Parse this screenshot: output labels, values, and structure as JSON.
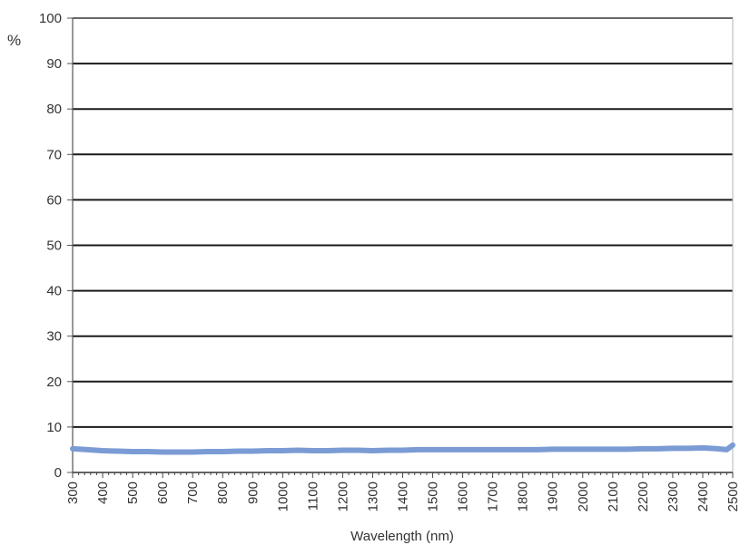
{
  "chart_data": {
    "type": "line",
    "title": "",
    "xlabel": "Wavelength (nm)",
    "ylabel": "%",
    "xlim": [
      300,
      2500
    ],
    "ylim": [
      0,
      100
    ],
    "x_ticks": [
      "300",
      "400",
      "500",
      "600",
      "700",
      "800",
      "900",
      "1000",
      "1100",
      "1200",
      "1300",
      "1400",
      "1500",
      "1600",
      "1700",
      "1800",
      "1900",
      "2000",
      "2100",
      "2200",
      "2300",
      "2400",
      "2500"
    ],
    "y_ticks": [
      "0",
      "10",
      "20",
      "30",
      "40",
      "50",
      "60",
      "70",
      "80",
      "90",
      "100"
    ],
    "grid": "horizontal",
    "legend": "none",
    "series": [
      {
        "color": "#7b9bd4",
        "x": [
          300,
          350,
          400,
          450,
          500,
          550,
          600,
          650,
          700,
          750,
          800,
          850,
          900,
          950,
          1000,
          1050,
          1100,
          1150,
          1200,
          1250,
          1300,
          1350,
          1400,
          1450,
          1500,
          1550,
          1600,
          1650,
          1700,
          1750,
          1800,
          1850,
          1900,
          1950,
          2000,
          2050,
          2100,
          2150,
          2200,
          2250,
          2300,
          2350,
          2400,
          2450,
          2480,
          2500
        ],
        "y": [
          5.2,
          5.0,
          4.8,
          4.7,
          4.6,
          4.6,
          4.5,
          4.5,
          4.5,
          4.6,
          4.6,
          4.7,
          4.7,
          4.8,
          4.8,
          4.9,
          4.8,
          4.8,
          4.9,
          4.9,
          4.8,
          4.9,
          4.9,
          5.0,
          5.0,
          5.0,
          5.0,
          5.0,
          5.0,
          5.0,
          5.0,
          5.0,
          5.1,
          5.1,
          5.1,
          5.1,
          5.1,
          5.1,
          5.2,
          5.2,
          5.3,
          5.3,
          5.4,
          5.2,
          5.0,
          6.0
        ]
      }
    ]
  }
}
